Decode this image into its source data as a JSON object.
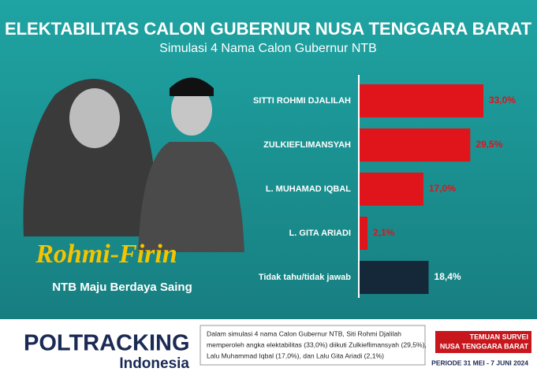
{
  "chart_data": {
    "type": "barh",
    "title": "ELEKTABILITAS CALON GUBERNUR NUSA TENGGARA BARAT",
    "subtitle": "Simulasi 4 Nama Calon Gubernur NTB",
    "categories": [
      "SITTI ROHMI DJALILAH",
      "ZULKIEFLIMANSYAH",
      "L. MUHAMAD IQBAL",
      "L. GITA ARIADI",
      "Tidak tahu/tidak jawab"
    ],
    "values": [
      33.0,
      29.5,
      17.0,
      2.1,
      18.4
    ],
    "value_labels": [
      "33,0%",
      "29,5%",
      "17,0%",
      "2,1%",
      "18,4%"
    ],
    "colors": [
      "#e0141b",
      "#e0141b",
      "#e0141b",
      "#e0141b",
      "#14283a"
    ],
    "label_colors": [
      "#e0141b",
      "#e0141b",
      "#e0141b",
      "#e0141b",
      "#ffffff"
    ]
  },
  "poster": {
    "name": "Rohmi-Firin",
    "slogan": "NTB Maju Berdaya Saing"
  },
  "footer": {
    "logo": "POLTRACKING",
    "logo_sub": "Indonesia",
    "description": [
      "Dalam simulasi 4 nama Calon Gubernur NTB, Siti Rohmi Djalilah",
      "memperoleh angka elektabilitas (33,0%) diikuti Zulkieflimansyah (29,5%),",
      "Lalu Muhammad Iqbal (17,0%), dan Lalu Gita Ariadi (2,1%)"
    ],
    "badge": [
      "TEMUAN SURVEI",
      "NUSA TENGGARA BARAT"
    ],
    "period": "PERIODE 31 MEI - 7 JUNI 2024"
  }
}
